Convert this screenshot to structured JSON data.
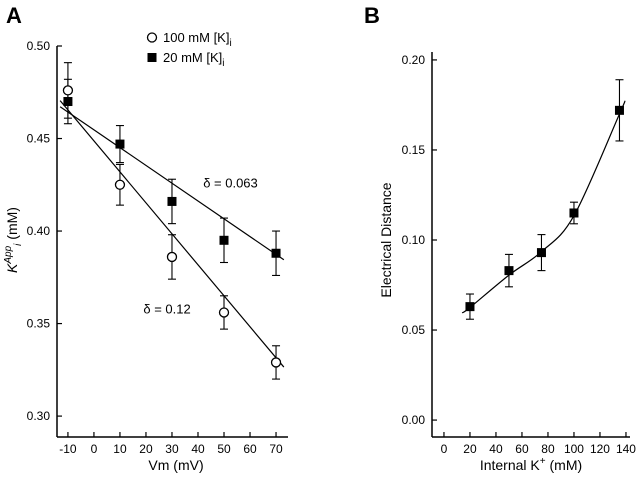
{
  "page": {
    "bg": "#ffffff",
    "fg": "#000000"
  },
  "panel_labels": {
    "a": "A",
    "b": "B"
  },
  "chart_data": [
    {
      "id": "A",
      "type": "scatter",
      "xlabel_parts": [
        {
          "t": "Vm (mV)"
        }
      ],
      "ylabel_parts": [
        {
          "t": "K",
          "style": "italic"
        },
        {
          "t": "App",
          "script": "sup",
          "style": "italic"
        },
        {
          "t": "i",
          "script": "sub",
          "style": "italic"
        },
        {
          "t": " (mM)"
        }
      ],
      "xlim": [
        -14.2,
        74.6
      ],
      "ylim": [
        0.2887,
        0.5
      ],
      "xticks": {
        "values": [
          -10,
          0,
          10,
          20,
          30,
          40,
          50,
          60,
          70
        ],
        "labels": [
          "-10",
          "0",
          "10",
          "20",
          "30",
          "40",
          "50",
          "60",
          "70"
        ]
      },
      "yticks": {
        "values": [
          0.3,
          0.35,
          0.4,
          0.45,
          0.5
        ],
        "labels": [
          "0.30",
          "0.35",
          "0.40",
          "0.45",
          "0.50"
        ]
      },
      "legend": {
        "position": "top-inside",
        "items": [
          {
            "marker": "open-circle",
            "label_parts": [
              {
                "t": "100 mM [K]"
              },
              {
                "t": "i",
                "script": "sub"
              }
            ]
          },
          {
            "marker": "filled-square",
            "label_parts": [
              {
                "t": "20 mM [K]"
              },
              {
                "t": "i",
                "script": "sub"
              }
            ]
          }
        ]
      },
      "series": [
        {
          "name": "100 mM [K]i",
          "marker": "open-circle",
          "x": [
            -10,
            10,
            30,
            50,
            70
          ],
          "y": [
            0.476,
            0.425,
            0.386,
            0.356,
            0.329
          ],
          "yerr": [
            0.015,
            0.011,
            0.012,
            0.009,
            0.009
          ],
          "fit_line": {
            "x": [
              -13,
              73
            ],
            "y": [
              0.4705,
              0.3265
            ]
          }
        },
        {
          "name": "20 mM [K]i",
          "marker": "filled-square",
          "x": [
            -10,
            10,
            30,
            50,
            70
          ],
          "y": [
            0.47,
            0.447,
            0.416,
            0.395,
            0.388
          ],
          "yerr": [
            0.012,
            0.01,
            0.012,
            0.012,
            0.012
          ],
          "fit_line": {
            "x": [
              -13,
              73
            ],
            "y": [
              0.4672,
              0.3845
            ]
          }
        }
      ],
      "annotations": [
        {
          "text": "δ = 0.063",
          "x": 42,
          "y": 0.4235
        },
        {
          "text": "δ = 0.12",
          "x": 19,
          "y": 0.3555
        }
      ]
    },
    {
      "id": "B",
      "type": "scatter",
      "xlabel_parts": [
        {
          "t": "Internal K"
        },
        {
          "t": "+",
          "script": "sup"
        },
        {
          "t": " (mM)"
        }
      ],
      "ylabel_parts": [
        {
          "t": "Electrical Distance"
        }
      ],
      "xlim": [
        -9.2,
        143.1
      ],
      "ylim": [
        -0.0094,
        0.2044
      ],
      "xticks": {
        "values": [
          0,
          20,
          40,
          60,
          80,
          100,
          120,
          140
        ],
        "labels": [
          "0",
          "20",
          "40",
          "60",
          "80",
          "100",
          "120",
          "140"
        ]
      },
      "yticks": {
        "values": [
          0.0,
          0.05,
          0.1,
          0.15,
          0.2
        ],
        "labels": [
          "0.00",
          "0.05",
          "0.10",
          "0.15",
          "0.20"
        ]
      },
      "series": [
        {
          "name": "Electrical distance",
          "marker": "filled-square",
          "x": [
            20,
            50,
            75,
            100,
            135
          ],
          "y": [
            0.063,
            0.083,
            0.093,
            0.115,
            0.172
          ],
          "yerr": [
            0.007,
            0.009,
            0.01,
            0.006,
            0.017
          ],
          "fit_curve": [
            [
              14,
              0.0595
            ],
            [
              20,
              0.0625
            ],
            [
              50,
              0.0805
            ],
            [
              75,
              0.0935
            ],
            [
              100,
              0.1135
            ],
            [
              135,
              0.17
            ],
            [
              139,
              0.177
            ]
          ]
        }
      ],
      "annotations": []
    }
  ]
}
